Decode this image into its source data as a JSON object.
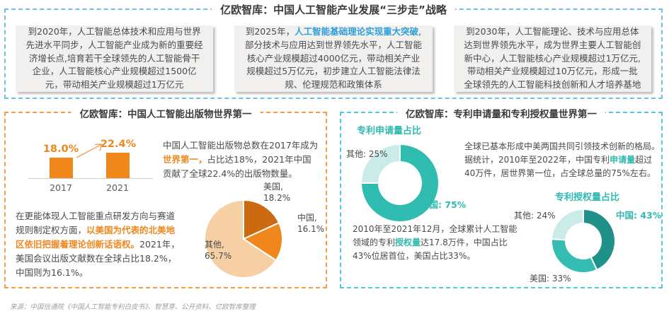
{
  "top": {
    "title": "亿欧智库：中国人工智能产业发展“三步走”战略",
    "boxes": [
      {
        "segments": [
          {
            "t": "到2020年，人工智能总体技术和应用与世界先进水平同步，人工智能产业成为新的重要经济增长点,培育若干全球领先的人工智能骨干企业，人工智能核心产业规模超过1500亿元，带动相关产业规模超过1万亿元",
            "hl": false
          }
        ]
      },
      {
        "segments": [
          {
            "t": "到2025年，",
            "hl": false
          },
          {
            "t": "人工智能基础理论实现重大突破",
            "hl": true
          },
          {
            "t": ",部分技术与应用达到世界领先水平，人工智能核心产业规模超过4000亿元，带动相关产业规模超过5万亿元，初步建立人工智能法律法规、伦理规范和政策体系",
            "hl": false
          }
        ]
      },
      {
        "segments": [
          {
            "t": "到2030年，人工智能理论、技术与应用总体达到世界领先水平，成为世界主要人工智能创新中心，人工智能核心产业规模超过1万亿元,带动相关产业规模超过10万亿元，形成一批全球领先的人工智能科技创新和人才培养基地",
            "hl": false
          }
        ]
      }
    ]
  },
  "left": {
    "title": "亿欧智库：中国人工智能出版物世界第一",
    "para1": [
      {
        "t": "中国人工智能出版物总数在2017年成为",
        "hl": false
      },
      {
        "t": "世界第一，",
        "hl": true
      },
      {
        "t": "占比达18%，2021年中国贡献了全球22.4%的出版物数量。",
        "hl": false
      }
    ],
    "para2": [
      {
        "t": "在更能体现人工智能重点研发方向与赛道规则制定权方面，",
        "hl": false
      },
      {
        "t": "以美国为代表的北美地区依旧把握着理论创新话语权。",
        "hl": true
      },
      {
        "t": "2021年，美国会议出版文献数在全球占比18.2%，中国则为16.1%。",
        "hl": false
      }
    ]
  },
  "right": {
    "title": "亿欧智库：专利申请量和专利授权量世界第一",
    "para1": [
      {
        "t": "全球已基本形成中美两国共同引领技术创新的格局。据统计，2010年至2022年，中国专利",
        "hl": false
      },
      {
        "t": "申请量",
        "hl": true
      },
      {
        "t": "超过40万件，居世界第一位，占全球总量的75%左右。",
        "hl": false
      }
    ],
    "para2": [
      {
        "t": "2010年至2021年12月，全球累计人工智能领域的专利",
        "hl": false
      },
      {
        "t": "授权量",
        "hl": true
      },
      {
        "t": "达17.8万件，中国占比43%位居首位，美国占比33%。",
        "hl": false
      }
    ]
  },
  "footer": {
    "source": "来源：中国信通院《中国人工智能专利白皮书》、智慧芽、公开资料、亿欧智库整理"
  },
  "chart_data": [
    {
      "type": "bar",
      "title": "",
      "categories": [
        "2017",
        "2021"
      ],
      "values": [
        18.0,
        22.4
      ],
      "value_labels": [
        "18.0%",
        "22.4%"
      ],
      "ylim": [
        0,
        25
      ],
      "color": "#F0871D",
      "grid": false
    },
    {
      "type": "pie",
      "title": "",
      "slices": [
        {
          "name": "美国",
          "value": 18.2,
          "label_lines": [
            "美国,",
            "18.2%"
          ],
          "color": "#CC6A12"
        },
        {
          "name": "中国",
          "value": 16.1,
          "label_lines": [
            "中国,",
            "16.1%"
          ],
          "color": "#F0871D"
        },
        {
          "name": "其他",
          "value": 65.7,
          "label_lines": [
            "其他,",
            "65.7%"
          ],
          "color": "#F7CFA4"
        }
      ]
    },
    {
      "type": "pie",
      "subtype": "donut",
      "title": "专利申请量占比",
      "slices": [
        {
          "name": "中国",
          "value": 75,
          "label": "中国: 75%",
          "color": "#31BCB2",
          "label_highlight": true
        },
        {
          "name": "其他",
          "value": 25,
          "label": "其他: 25%",
          "color": "#CBEBE8",
          "label_highlight": false
        }
      ]
    },
    {
      "type": "pie",
      "subtype": "donut",
      "title": "专利授权量占比",
      "slices": [
        {
          "name": "中国",
          "value": 43,
          "label": "中国: 43%",
          "color": "#1F9188",
          "label_highlight": true
        },
        {
          "name": "美国",
          "value": 33,
          "label": "美国: 33%",
          "color": "#36BDB3",
          "label_highlight": false
        },
        {
          "name": "其他",
          "value": 24,
          "label": "其他: 24%",
          "color": "#CBEBE8",
          "label_highlight": false
        }
      ]
    }
  ]
}
